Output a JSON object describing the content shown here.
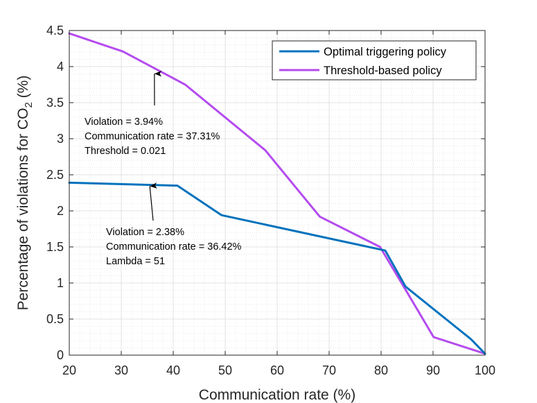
{
  "chart_data": {
    "type": "line",
    "title": "",
    "xlabel": "Communication rate (%)",
    "ylabel_prefix": "Percentage of violations for CO",
    "ylabel_subscript": "2",
    "ylabel_suffix": " (%)",
    "xlim": [
      20,
      100
    ],
    "ylim": [
      0,
      4.5
    ],
    "xticks": [
      20,
      30,
      40,
      50,
      60,
      70,
      80,
      90,
      100
    ],
    "yticks": [
      0,
      0.5,
      1,
      1.5,
      2,
      2.5,
      3,
      3.5,
      4,
      4.5
    ],
    "xtick_labels": [
      "20",
      "30",
      "40",
      "50",
      "60",
      "70",
      "80",
      "90",
      "100"
    ],
    "ytick_labels": [
      "0",
      "0.5",
      "1",
      "1.5",
      "2",
      "2.5",
      "3",
      "3.5",
      "4",
      "4.5"
    ],
    "grid": true,
    "minor_grid": true,
    "legend_position": "top-right",
    "series": [
      {
        "name": "Optimal triggering policy",
        "color": "#0072BD",
        "x": [
          20,
          40.8,
          49.3,
          80.8,
          84.7,
          97.3,
          100
        ],
        "y": [
          2.39,
          2.35,
          1.94,
          1.45,
          0.95,
          0.22,
          0.02
        ]
      },
      {
        "name": "Threshold-based policy",
        "color": "#B44BEF",
        "x": [
          20,
          30.3,
          42.3,
          57.7,
          68.2,
          79.8,
          84.6,
          90.1,
          100
        ],
        "y": [
          4.46,
          4.21,
          3.75,
          2.84,
          1.92,
          1.5,
          0.92,
          0.25,
          0.02
        ]
      }
    ],
    "annotations": [
      {
        "lines": [
          "Violation = 3.94%",
          "Communication rate = 37.31%",
          "Threshold = 0.021"
        ],
        "arrow_to": [
          37.31,
          3.94
        ]
      },
      {
        "lines": [
          "Violation = 2.38%",
          "Communication rate = 36.42%",
          "Lambda = 51"
        ],
        "arrow_to": [
          36.42,
          2.38
        ]
      }
    ]
  }
}
